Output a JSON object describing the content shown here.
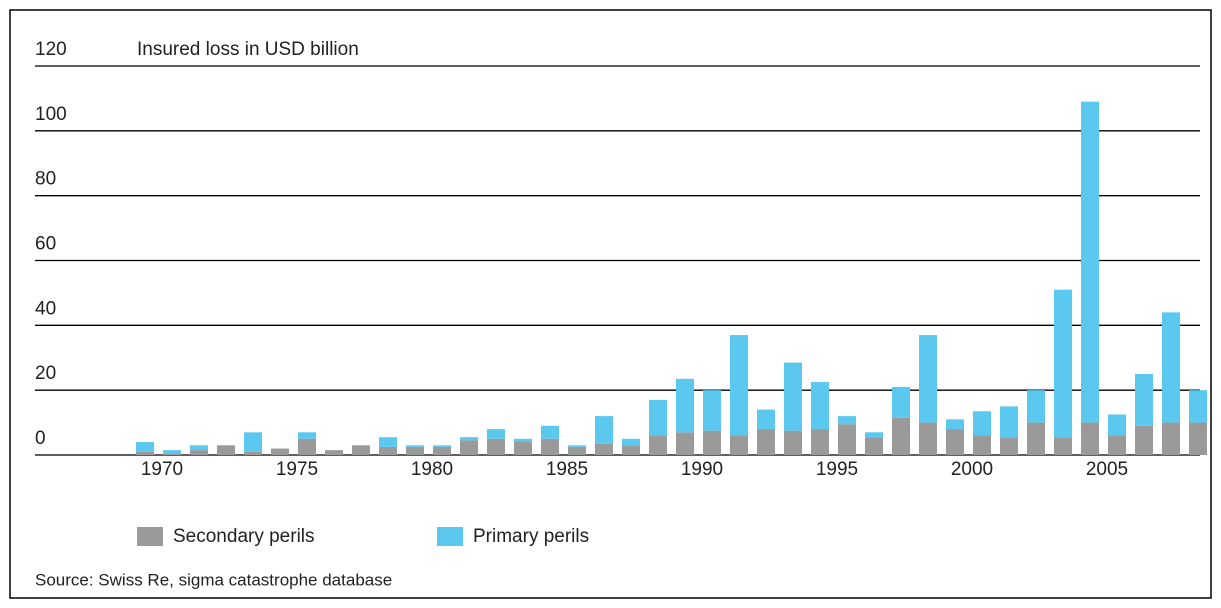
{
  "chart_data": {
    "type": "stacked_bar",
    "y_label": "Insured loss in USD billion",
    "source": "Source: Swiss Re, sigma catastrophe database",
    "categories": [
      "1970",
      null,
      null,
      null,
      null,
      "1975",
      null,
      null,
      null,
      null,
      "1980",
      null,
      null,
      null,
      null,
      "1985",
      null,
      null,
      null,
      null,
      "1990",
      null,
      null,
      null,
      null,
      "1995",
      null,
      null,
      null,
      null,
      "2000",
      null,
      null,
      null,
      null,
      "2005",
      null,
      null,
      null,
      null
    ],
    "series": [
      {
        "name": "Secondary perils",
        "color": "#9a9a9a",
        "values": [
          1,
          0.5,
          1.5,
          3,
          1,
          2,
          5,
          1.5,
          3,
          2.5,
          2.5,
          2.5,
          4.5,
          5,
          4,
          5,
          2.5,
          3.5,
          3,
          6,
          7,
          7.5,
          6,
          8,
          7.5,
          8,
          9.5,
          5.5,
          11.5,
          10,
          8,
          6,
          5.5,
          10,
          5.5,
          10,
          6,
          9,
          10,
          10
        ]
      },
      {
        "name": "Primary perils",
        "color": "#5bc8f0",
        "values": [
          3,
          1,
          1.5,
          0,
          6,
          0,
          2,
          0,
          0,
          3,
          0.5,
          0.5,
          1,
          3,
          1,
          4,
          0.5,
          8.5,
          2,
          11,
          16.5,
          12.5,
          31,
          6,
          21,
          14.5,
          2.5,
          1.5,
          9.5,
          27,
          3,
          7.5,
          9.5,
          10,
          45.5,
          99,
          6.5,
          16,
          34,
          10
        ]
      }
    ],
    "ylim": [
      0,
      120
    ],
    "yticks": [
      0,
      20,
      40,
      60,
      80,
      100,
      120
    ],
    "grid": true
  }
}
